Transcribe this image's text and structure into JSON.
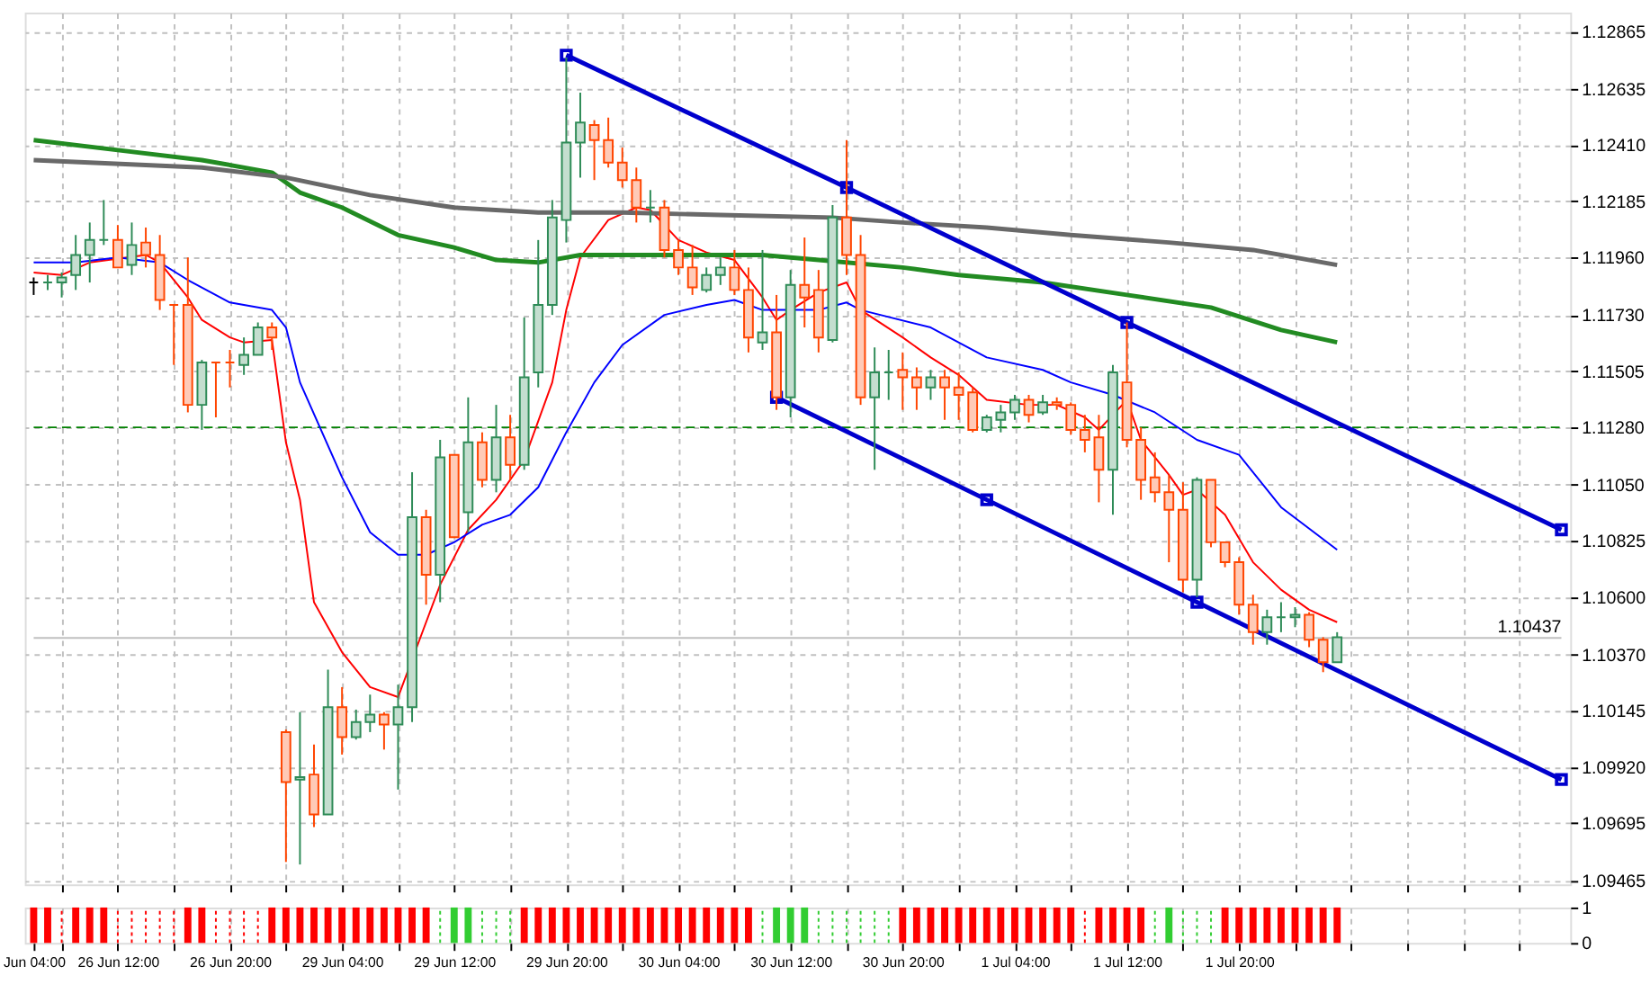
{
  "chart_data": [
    {
      "type": "candlestick",
      "categories": [
        null,
        null,
        null,
        null,
        null,
        null,
        null,
        null,
        null,
        null,
        null,
        null,
        null,
        null,
        null,
        null,
        null,
        null,
        null,
        null,
        null,
        null,
        null,
        null,
        null,
        null,
        null,
        null,
        null,
        null,
        null,
        null,
        null,
        null,
        null,
        null,
        null,
        null,
        null,
        null,
        null,
        null,
        null,
        null,
        null,
        null,
        null,
        null,
        null,
        null,
        null,
        null,
        null,
        null,
        null,
        null,
        null,
        null,
        null,
        null,
        null,
        null,
        null,
        null,
        null,
        null,
        null,
        null,
        null,
        null,
        null,
        null,
        null,
        null,
        null,
        null,
        null,
        null,
        null,
        null,
        null,
        null,
        null,
        null,
        null,
        null,
        null,
        null,
        null,
        null,
        null,
        null,
        null,
        null,
        null,
        null,
        null,
        null,
        null,
        null,
        null,
        null,
        null,
        null,
        null,
        null,
        null,
        null,
        null,
        null
      ],
      "ohlc": [
        [
          1.1186,
          1.1188,
          1.1181,
          1.1186
        ],
        [
          1.1186,
          1.1189,
          1.1183,
          1.1186
        ],
        [
          1.1186,
          1.119,
          1.118,
          1.1188
        ],
        [
          1.1189,
          1.1205,
          1.1183,
          1.1197
        ],
        [
          1.1197,
          1.121,
          1.1186,
          1.1203
        ],
        [
          1.1203,
          1.1219,
          1.1201,
          1.1203
        ],
        [
          1.1203,
          1.1209,
          1.1192,
          1.1192
        ],
        [
          1.1193,
          1.121,
          1.1189,
          1.1201
        ],
        [
          1.1202,
          1.1208,
          1.1192,
          1.1197
        ],
        [
          1.1197,
          1.1205,
          1.1175,
          1.1179
        ],
        [
          1.1177,
          1.1177,
          1.1153,
          1.1177
        ],
        [
          1.1177,
          1.1196,
          1.1134,
          1.1137
        ],
        [
          1.1137,
          1.1155,
          1.1127,
          1.1154
        ],
        [
          1.1154,
          1.1154,
          1.1132,
          1.1154
        ],
        [
          1.1154,
          1.1159,
          1.1144,
          1.1154
        ],
        [
          1.1153,
          1.1164,
          1.1149,
          1.1157
        ],
        [
          1.1157,
          1.117,
          1.1157,
          1.1168
        ],
        [
          1.1168,
          1.117,
          1.1159,
          1.1164
        ],
        [
          1.1006,
          1.1007,
          1.0954,
          1.0986
        ],
        [
          1.0987,
          1.1014,
          1.0953,
          1.0988
        ],
        [
          1.0989,
          1.1001,
          1.0968,
          1.0973
        ],
        [
          1.0973,
          1.1031,
          1.0973,
          1.1016
        ],
        [
          1.1016,
          1.1024,
          1.0997,
          1.1004
        ],
        [
          1.1004,
          1.1015,
          1.1003,
          1.101
        ],
        [
          1.101,
          1.1021,
          1.1006,
          1.1013
        ],
        [
          1.1013,
          1.1014,
          1.0999,
          1.1009
        ],
        [
          1.1009,
          1.1025,
          1.0983,
          1.1016
        ],
        [
          1.1016,
          1.111,
          1.101,
          1.1092
        ],
        [
          1.1092,
          1.1095,
          1.1057,
          1.1069
        ],
        [
          1.1069,
          1.1123,
          1.1058,
          1.1116
        ],
        [
          1.1117,
          1.1117,
          1.1084,
          1.1084
        ],
        [
          1.1094,
          1.114,
          1.1086,
          1.1122
        ],
        [
          1.1122,
          1.1126,
          1.1104,
          1.1107
        ],
        [
          1.1107,
          1.1137,
          1.1102,
          1.1124
        ],
        [
          1.1124,
          1.1133,
          1.1107,
          1.1113
        ],
        [
          1.1113,
          1.1172,
          1.1111,
          1.1148
        ],
        [
          1.115,
          1.1203,
          1.1144,
          1.1177
        ],
        [
          1.1177,
          1.1219,
          1.1173,
          1.1212
        ],
        [
          1.1211,
          1.1276,
          1.1202,
          1.1242
        ],
        [
          1.1242,
          1.1262,
          1.1228,
          1.125
        ],
        [
          1.1249,
          1.1251,
          1.1227,
          1.1243
        ],
        [
          1.1243,
          1.1252,
          1.1232,
          1.1234
        ],
        [
          1.1234,
          1.124,
          1.1224,
          1.1227
        ],
        [
          1.1227,
          1.1232,
          1.121,
          1.1216
        ],
        [
          1.1216,
          1.1223,
          1.121,
          1.1216
        ],
        [
          1.1216,
          1.1219,
          1.1196,
          1.1199
        ],
        [
          1.1199,
          1.1203,
          1.1189,
          1.1192
        ],
        [
          1.1192,
          1.1201,
          1.1181,
          1.1184
        ],
        [
          1.1183,
          1.1192,
          1.1182,
          1.1189
        ],
        [
          1.1189,
          1.1196,
          1.1185,
          1.1192
        ],
        [
          1.1192,
          1.1199,
          1.1181,
          1.1183
        ],
        [
          1.1183,
          1.1192,
          1.1158,
          1.1164
        ],
        [
          1.1162,
          1.1199,
          1.1159,
          1.1166
        ],
        [
          1.1166,
          1.1181,
          1.1135,
          1.114
        ],
        [
          1.114,
          1.1191,
          1.1132,
          1.1185
        ],
        [
          1.1185,
          1.1204,
          1.1168,
          1.118
        ],
        [
          1.1183,
          1.1191,
          1.1158,
          1.1164
        ],
        [
          1.1163,
          1.1217,
          1.1162,
          1.1212
        ],
        [
          1.1212,
          1.1243,
          1.1189,
          1.1197
        ],
        [
          1.1197,
          1.1205,
          1.1137,
          1.114
        ],
        [
          1.114,
          1.116,
          1.1111,
          1.115
        ],
        [
          1.115,
          1.1159,
          1.1139,
          1.115
        ],
        [
          1.1151,
          1.1158,
          1.1135,
          1.1148
        ],
        [
          1.1148,
          1.1152,
          1.1135,
          1.1144
        ],
        [
          1.1144,
          1.1151,
          1.1139,
          1.1148
        ],
        [
          1.1148,
          1.1151,
          1.1131,
          1.1144
        ],
        [
          1.1144,
          1.115,
          1.1131,
          1.1141
        ],
        [
          1.1142,
          1.1144,
          1.1126,
          1.1127
        ],
        [
          1.1127,
          1.1133,
          1.1126,
          1.1132
        ],
        [
          1.1131,
          1.1137,
          1.1126,
          1.1134
        ],
        [
          1.1134,
          1.1141,
          1.1131,
          1.1139
        ],
        [
          1.1139,
          1.1141,
          1.113,
          1.1133
        ],
        [
          1.1134,
          1.1141,
          1.1133,
          1.1138
        ],
        [
          1.1138,
          1.114,
          1.1135,
          1.1137
        ],
        [
          1.1137,
          1.1138,
          1.1125,
          1.1127
        ],
        [
          1.1127,
          1.1133,
          1.1118,
          1.1123
        ],
        [
          1.1124,
          1.1133,
          1.1098,
          1.1111
        ],
        [
          1.1111,
          1.1153,
          1.1093,
          1.115
        ],
        [
          1.1146,
          1.117,
          1.112,
          1.1123
        ],
        [
          1.1123,
          1.1128,
          1.1099,
          1.1107
        ],
        [
          1.1108,
          1.1118,
          1.1098,
          1.1102
        ],
        [
          1.1102,
          1.1109,
          1.1074,
          1.1095
        ],
        [
          1.1095,
          1.1106,
          1.1062,
          1.1067
        ],
        [
          1.1067,
          1.1108,
          1.106,
          1.1107
        ],
        [
          1.1107,
          1.1107,
          1.108,
          1.1082
        ],
        [
          1.1082,
          1.1082,
          1.1072,
          1.1074
        ],
        [
          1.1074,
          1.1076,
          1.1053,
          1.1057
        ],
        [
          1.1057,
          1.1061,
          1.1041,
          1.1046
        ],
        [
          1.1046,
          1.1055,
          1.1041,
          1.1052
        ],
        [
          1.1052,
          1.1058,
          1.1046,
          1.1052
        ],
        [
          1.1052,
          1.1056,
          1.1048,
          1.1053
        ],
        [
          1.1053,
          1.1054,
          1.104,
          1.1043
        ],
        [
          1.1043,
          1.1044,
          1.103,
          1.1034
        ],
        [
          1.1034,
          1.1046,
          1.1034,
          1.1044
        ],
        null,
        null,
        null,
        null,
        null,
        null,
        null,
        null,
        null,
        null,
        null,
        null,
        null,
        null,
        null,
        null
      ],
      "colors": [
        "#000000",
        "#2e8b57",
        "#2e8b57",
        "#2e8b57",
        "#2e8b57",
        "#2e8b57",
        "#ff4500",
        "#2e8b57",
        "#ff4500",
        "#ff4500",
        "#ff4500",
        "#ff4500",
        "#2e8b57",
        "#ff4500",
        "#ff4500",
        "#2e8b57",
        "#2e8b57",
        "#ff4500",
        "#ff4500",
        "#2e8b57",
        "#ff4500",
        "#2e8b57",
        "#ff4500",
        "#2e8b57",
        "#2e8b57",
        "#ff4500",
        "#2e8b57",
        "#2e8b57",
        "#ff4500",
        "#2e8b57",
        "#ff4500",
        "#2e8b57",
        "#ff4500",
        "#2e8b57",
        "#ff4500",
        "#2e8b57",
        "#2e8b57",
        "#2e8b57",
        "#2e8b57",
        "#2e8b57",
        "#ff4500",
        "#ff4500",
        "#ff4500",
        "#ff4500",
        "#2e8b57",
        "#ff4500",
        "#ff4500",
        "#ff4500",
        "#2e8b57",
        "#2e8b57",
        "#ff4500",
        "#ff4500",
        "#2e8b57",
        "#ff4500",
        "#2e8b57",
        "#ff4500",
        "#ff4500",
        "#2e8b57",
        "#ff4500",
        "#ff4500",
        "#2e8b57",
        "#2e8b57",
        "#ff4500",
        "#ff4500",
        "#2e8b57",
        "#ff4500",
        "#ff4500",
        "#ff4500",
        "#2e8b57",
        "#2e8b57",
        "#2e8b57",
        "#ff4500",
        "#2e8b57",
        "#ff4500",
        "#ff4500",
        "#ff4500",
        "#ff4500",
        "#2e8b57",
        "#ff4500",
        "#ff4500",
        "#ff4500",
        "#ff4500",
        "#ff4500",
        "#2e8b57",
        "#ff4500",
        "#ff4500",
        "#ff4500",
        "#ff4500",
        "#2e8b57",
        "#2e8b57",
        "#2e8b57",
        "#ff4500",
        "#ff4500",
        "#2e8b57",
        null,
        null,
        null,
        null,
        null,
        null,
        null,
        null,
        null,
        null,
        null,
        null,
        null,
        null,
        null,
        null
      ],
      "series": [
        {
          "type": "line",
          "color": "#ff0000",
          "values": [
            1.119,
            null,
            1.1189,
            null,
            1.1194,
            null,
            null,
            null,
            1.1197,
            1.1194,
            null,
            1.118,
            1.1171,
            null,
            1.1164,
            1.1162,
            null,
            1.1163,
            1.1122,
            1.1099,
            1.1058,
            null,
            1.1038,
            null,
            1.1024,
            null,
            1.102,
            null,
            1.105,
            1.1065,
            null,
            1.1087,
            null,
            1.1099,
            null,
            1.1115,
            null,
            1.1146,
            1.1175,
            1.1196,
            null,
            1.1211,
            null,
            1.1216,
            1.1215,
            null,
            1.1203,
            null,
            1.1198,
            null,
            1.1195,
            null,
            1.118,
            1.1171,
            1.1175,
            null,
            1.1182,
            null,
            1.1186,
            1.1175,
            null,
            null,
            1.1164,
            null,
            1.1156,
            null,
            1.1149,
            null,
            1.1139,
            null,
            null,
            1.1137,
            null,
            1.1137,
            null,
            1.1132,
            1.1127,
            null,
            1.1139,
            1.1123,
            null,
            1.1109,
            1.1101,
            1.1103,
            null,
            1.1093,
            null,
            1.1074,
            null,
            1.1063,
            null,
            1.1055,
            null,
            1.105,
            null,
            null,
            null,
            null,
            null,
            null,
            null,
            null,
            null,
            null,
            null,
            null,
            null,
            null,
            null,
            null
          ]
        },
        {
          "type": "line",
          "color": "#0000ff",
          "values": [
            1.1194,
            null,
            null,
            1.1194,
            null,
            null,
            1.1196,
            null,
            null,
            1.1194,
            null,
            1.1187,
            null,
            null,
            1.1178,
            null,
            null,
            1.1175,
            1.1168,
            1.1146,
            null,
            null,
            1.1108,
            null,
            1.1086,
            null,
            1.1077,
            null,
            1.1077,
            null,
            1.1082,
            null,
            1.1089,
            null,
            1.1093,
            null,
            1.1104,
            1.1115,
            1.1126,
            null,
            1.1146,
            null,
            1.1161,
            null,
            null,
            1.1173,
            null,
            null,
            1.1177,
            null,
            1.1179,
            null,
            1.1175,
            null,
            1.1175,
            null,
            1.1175,
            null,
            1.1178,
            1.1175,
            null,
            null,
            null,
            null,
            1.1168,
            null,
            null,
            null,
            1.1156,
            null,
            null,
            null,
            1.1151,
            null,
            1.1146,
            null,
            null,
            1.1141,
            null,
            null,
            1.1134,
            null,
            null,
            1.1123,
            null,
            null,
            1.1117,
            null,
            null,
            1.1096,
            null,
            null,
            null,
            1.1079,
            null,
            null,
            null,
            null,
            null,
            null,
            null,
            null,
            null,
            null,
            null,
            null,
            null,
            null,
            null,
            null
          ]
        },
        {
          "type": "line",
          "color": "#228b22",
          "values": [
            1.1243,
            null,
            null,
            null,
            null,
            null,
            1.1239,
            null,
            null,
            null,
            null,
            null,
            1.1235,
            null,
            null,
            null,
            null,
            1.123,
            null,
            1.1222,
            null,
            null,
            1.1216,
            null,
            null,
            null,
            1.1205,
            null,
            null,
            null,
            1.12,
            null,
            null,
            1.1195,
            null,
            null,
            1.1194,
            null,
            null,
            1.1197,
            null,
            null,
            null,
            1.1197,
            null,
            null,
            null,
            1.1197,
            null,
            null,
            null,
            null,
            1.1197,
            null,
            null,
            null,
            1.1195,
            null,
            null,
            null,
            null,
            null,
            1.1192,
            null,
            null,
            null,
            1.1189,
            null,
            null,
            null,
            null,
            null,
            1.1186,
            null,
            null,
            null,
            null,
            null,
            1.1181,
            null,
            null,
            null,
            null,
            null,
            1.1176,
            null,
            null,
            null,
            null,
            1.1167,
            null,
            null,
            null,
            1.1162,
            null,
            null,
            null,
            null,
            null,
            null,
            null,
            null,
            null,
            null,
            null,
            null,
            null,
            null,
            null,
            null
          ]
        },
        {
          "type": "line",
          "color": "#696969",
          "values": [
            1.1235,
            null,
            null,
            null,
            1.1234,
            null,
            null,
            null,
            null,
            null,
            null,
            null,
            1.1232,
            null,
            null,
            null,
            null,
            null,
            1.1228,
            null,
            null,
            null,
            null,
            null,
            1.1221,
            null,
            null,
            null,
            null,
            null,
            1.1216,
            null,
            null,
            null,
            null,
            null,
            1.1214,
            null,
            null,
            null,
            null,
            null,
            1.1214,
            null,
            null,
            null,
            null,
            null,
            null,
            1.1213,
            null,
            null,
            null,
            null,
            null,
            null,
            null,
            1.1212,
            null,
            null,
            null,
            null,
            1.121,
            null,
            null,
            null,
            null,
            null,
            1.1208,
            null,
            null,
            null,
            null,
            null,
            1.1205,
            null,
            null,
            null,
            null,
            null,
            null,
            1.1202,
            null,
            null,
            null,
            null,
            null,
            1.1199,
            null,
            null,
            null,
            null,
            null,
            1.1193,
            null,
            null,
            null,
            null,
            null,
            null,
            null,
            null,
            null,
            null,
            null,
            null,
            null,
            null,
            null,
            null
          ]
        },
        {
          "type": "line",
          "color": "#0000cd",
          "marker": "square",
          "values": [
            null,
            null,
            null,
            null,
            null,
            null,
            null,
            null,
            null,
            null,
            null,
            null,
            null,
            null,
            null,
            null,
            null,
            null,
            null,
            null,
            null,
            null,
            null,
            null,
            null,
            null,
            null,
            null,
            null,
            null,
            null,
            null,
            null,
            null,
            null,
            null,
            null,
            null,
            1.1277,
            null,
            null,
            null,
            null,
            null,
            null,
            null,
            null,
            null,
            null,
            null,
            null,
            null,
            null,
            null,
            null,
            null,
            null,
            null,
            1.1224,
            null,
            null,
            null,
            null,
            null,
            null,
            null,
            null,
            null,
            null,
            null,
            null,
            null,
            null,
            null,
            null,
            null,
            null,
            null,
            1.117,
            null,
            null,
            null,
            null,
            null,
            null,
            null,
            null,
            null,
            null,
            null,
            null,
            null,
            null,
            null,
            null,
            null,
            null,
            null,
            null,
            null,
            null,
            null,
            null,
            null,
            null,
            null,
            null,
            null,
            null,
            1.1087
          ]
        },
        {
          "type": "line",
          "color": "#0000cd",
          "marker": "square",
          "values": [
            null,
            null,
            null,
            null,
            null,
            null,
            null,
            null,
            null,
            null,
            null,
            null,
            null,
            null,
            null,
            null,
            null,
            null,
            null,
            null,
            null,
            null,
            null,
            null,
            null,
            null,
            null,
            null,
            null,
            null,
            null,
            null,
            null,
            null,
            null,
            null,
            null,
            null,
            null,
            null,
            null,
            null,
            null,
            null,
            null,
            null,
            null,
            null,
            null,
            null,
            null,
            null,
            null,
            1.114,
            null,
            null,
            null,
            null,
            null,
            null,
            null,
            null,
            null,
            null,
            null,
            null,
            null,
            null,
            1.1099,
            null,
            null,
            null,
            null,
            null,
            null,
            null,
            null,
            null,
            null,
            null,
            null,
            null,
            null,
            1.1058,
            null,
            null,
            null,
            null,
            null,
            null,
            null,
            null,
            null,
            null,
            null,
            null,
            null,
            null,
            null,
            null,
            null,
            null,
            null,
            null,
            null,
            null,
            null,
            null,
            null,
            1.0987
          ]
        }
      ],
      "ylim": [
        1.0945,
        1.1294
      ],
      "yticks": [
        {
          "value": 1.12865,
          "label": "1.12865"
        },
        {
          "value": 1.12635,
          "label": "1.12635"
        },
        {
          "value": 1.1241,
          "label": "1.12410"
        },
        {
          "value": 1.12185,
          "label": "1.12185"
        },
        {
          "value": 1.1196,
          "label": "1.11960"
        },
        {
          "value": 1.1173,
          "label": "1.11730"
        },
        {
          "value": 1.11505,
          "label": "1.11505"
        },
        {
          "value": 1.1128,
          "label": "1.11280"
        },
        {
          "value": 1.1105,
          "label": "1.11050"
        },
        {
          "value": 1.10825,
          "label": "1.10825"
        },
        {
          "value": 1.106,
          "label": "1.10600"
        },
        {
          "value": 1.1037,
          "label": "1.10370"
        },
        {
          "value": 1.10145,
          "label": "1.10145"
        },
        {
          "value": 1.0992,
          "label": "1.09920"
        },
        {
          "value": 1.09695,
          "label": "1.09695"
        },
        {
          "value": 1.09465,
          "label": "1.09465"
        }
      ],
      "grid": true,
      "tick_labels": "y",
      "ref_lines": [
        {
          "axis": "y",
          "value": 1.1128,
          "color": "#008000",
          "line_style": "dashed"
        },
        {
          "axis": "y",
          "value": 1.10437,
          "label": "1.10437",
          "color": "#c0c0c0",
          "line_style": "solid"
        }
      ]
    },
    {
      "type": "bar",
      "categories": [
        "Jun 04:00",
        null,
        null,
        null,
        null,
        null,
        "26 Jun 12:00",
        null,
        null,
        null,
        null,
        null,
        null,
        null,
        "26 Jun 20:00",
        null,
        null,
        null,
        null,
        null,
        null,
        null,
        "29 Jun 04:00",
        null,
        null,
        null,
        null,
        null,
        null,
        null,
        "29 Jun 12:00",
        null,
        null,
        null,
        null,
        null,
        null,
        null,
        "29 Jun 20:00",
        null,
        null,
        null,
        null,
        null,
        null,
        null,
        "30 Jun 04:00",
        null,
        null,
        null,
        null,
        null,
        null,
        null,
        "30 Jun 12:00",
        null,
        null,
        null,
        null,
        null,
        null,
        null,
        "30 Jun 20:00",
        null,
        null,
        null,
        null,
        null,
        null,
        null,
        "1 Jul 04:00",
        null,
        null,
        null,
        null,
        null,
        null,
        null,
        "1 Jul 12:00",
        null,
        null,
        null,
        null,
        null,
        null,
        null,
        "1 Jul 20:00",
        null,
        null,
        null,
        null,
        null,
        null,
        null,
        null,
        null,
        null,
        null,
        null,
        null,
        null,
        null,
        null,
        null,
        null,
        null,
        null,
        null,
        null,
        null
      ],
      "values": [
        1,
        1,
        0,
        1,
        1,
        1,
        0,
        0,
        0,
        0,
        0,
        1,
        1,
        0,
        0,
        0,
        0,
        1,
        1,
        1,
        1,
        1,
        1,
        1,
        1,
        1,
        1,
        1,
        1,
        0,
        1,
        1,
        0,
        0,
        0,
        1,
        1,
        1,
        1,
        1,
        1,
        1,
        1,
        1,
        1,
        1,
        1,
        1,
        1,
        1,
        1,
        1,
        0,
        1,
        1,
        1,
        0,
        0,
        0,
        0,
        0,
        0,
        1,
        1,
        1,
        1,
        1,
        1,
        1,
        1,
        1,
        1,
        1,
        1,
        1,
        0,
        1,
        1,
        1,
        1,
        0,
        1,
        0,
        0,
        0,
        1,
        1,
        1,
        1,
        1,
        1,
        1,
        1,
        1,
        null,
        null,
        null,
        null,
        null,
        null,
        null,
        null,
        null,
        null,
        null,
        null,
        null,
        null,
        null,
        null
      ],
      "colors": [
        "#ff0000",
        "#ff0000",
        "#ff0000",
        "#ff0000",
        "#ff0000",
        "#ff0000",
        "#ff0000",
        "#ff0000",
        "#ff0000",
        "#ff0000",
        "#ff0000",
        "#ff0000",
        "#ff0000",
        "#ff0000",
        "#ff0000",
        "#ff0000",
        "#ff0000",
        "#ff0000",
        "#ff0000",
        "#ff0000",
        "#ff0000",
        "#ff0000",
        "#ff0000",
        "#ff0000",
        "#ff0000",
        "#ff0000",
        "#ff0000",
        "#ff0000",
        "#ff0000",
        "#32cd32",
        "#32cd32",
        "#32cd32",
        "#32cd32",
        "#32cd32",
        "#32cd32",
        "#ff0000",
        "#ff0000",
        "#ff0000",
        "#ff0000",
        "#ff0000",
        "#ff0000",
        "#ff0000",
        "#ff0000",
        "#ff0000",
        "#ff0000",
        "#ff0000",
        "#ff0000",
        "#ff0000",
        "#ff0000",
        "#ff0000",
        "#ff0000",
        "#ff0000",
        "#32cd32",
        "#32cd32",
        "#32cd32",
        "#32cd32",
        "#32cd32",
        "#32cd32",
        "#32cd32",
        "#32cd32",
        "#32cd32",
        "#32cd32",
        "#ff0000",
        "#ff0000",
        "#ff0000",
        "#ff0000",
        "#ff0000",
        "#ff0000",
        "#ff0000",
        "#ff0000",
        "#ff0000",
        "#ff0000",
        "#ff0000",
        "#ff0000",
        "#ff0000",
        "#ff0000",
        "#ff0000",
        "#ff0000",
        "#ff0000",
        "#ff0000",
        "#32cd32",
        "#32cd32",
        "#32cd32",
        "#32cd32",
        "#32cd32",
        "#ff0000",
        "#ff0000",
        "#ff0000",
        "#ff0000",
        "#ff0000",
        "#ff0000",
        "#ff0000",
        "#ff0000",
        "#ff0000",
        null,
        null,
        null,
        null,
        null,
        null,
        null,
        null,
        null,
        null,
        null,
        null,
        null,
        null,
        null,
        null
      ],
      "ylim": [
        0,
        1
      ],
      "yticks": [
        0,
        1
      ],
      "grid": "x"
    }
  ]
}
